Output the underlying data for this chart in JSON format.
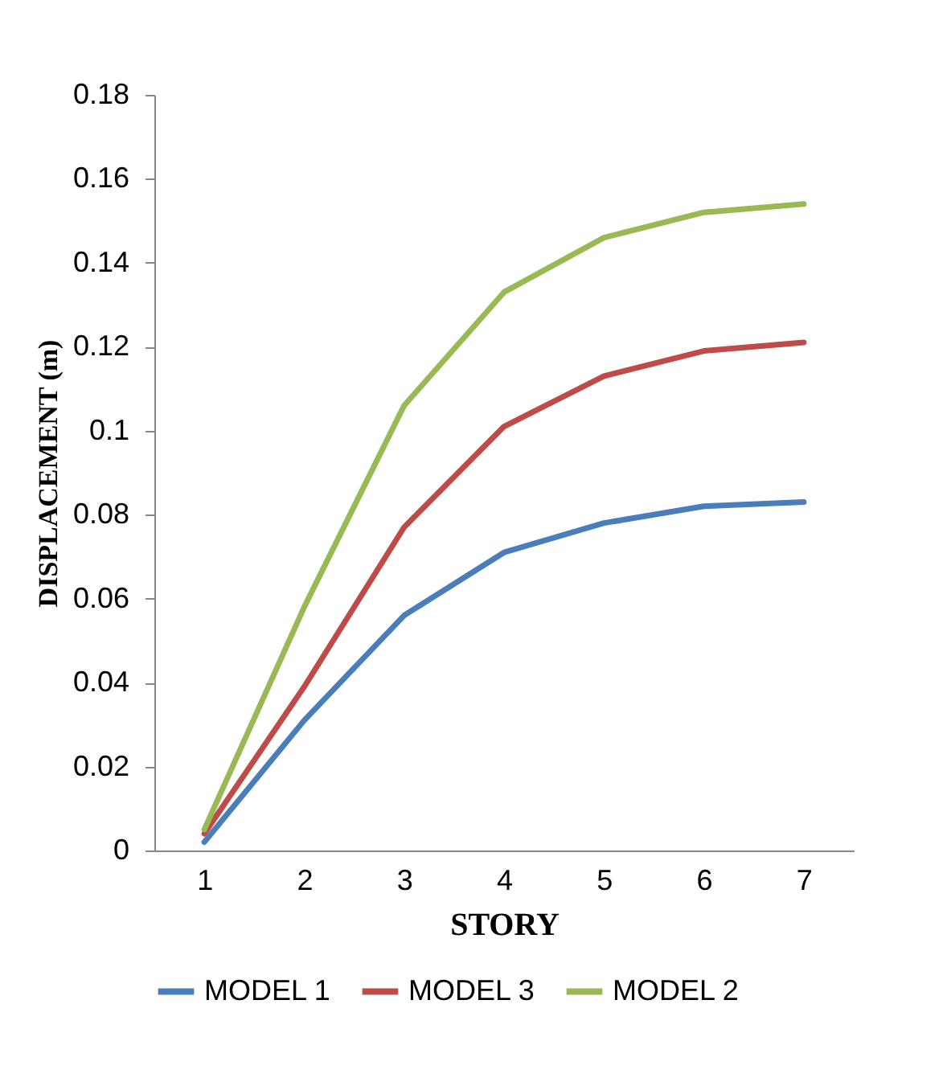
{
  "chart_data": {
    "type": "line",
    "xlabel": "STORY",
    "ylabel": "DISPLACEMENT (m)",
    "categories": [
      "1",
      "2",
      "3",
      "4",
      "5",
      "6",
      "7"
    ],
    "series": [
      {
        "name": "MODEL 1",
        "color": "#4a7ebb",
        "values": [
          0.002,
          0.031,
          0.056,
          0.071,
          0.078,
          0.082,
          0.083
        ]
      },
      {
        "name": "MODEL 3",
        "color": "#be4b48",
        "values": [
          0.004,
          0.039,
          0.077,
          0.101,
          0.113,
          0.119,
          0.121
        ]
      },
      {
        "name": "MODEL 2",
        "color": "#98b954",
        "values": [
          0.005,
          0.058,
          0.106,
          0.133,
          0.146,
          0.152,
          0.154
        ]
      }
    ],
    "ylim": [
      0,
      0.18
    ],
    "yticks": [
      0,
      0.02,
      0.04,
      0.06,
      0.08,
      0.1,
      0.12,
      0.14,
      0.16,
      0.18
    ],
    "grid": false,
    "legend": "bottom",
    "marker": "none",
    "line_style": "solid"
  }
}
